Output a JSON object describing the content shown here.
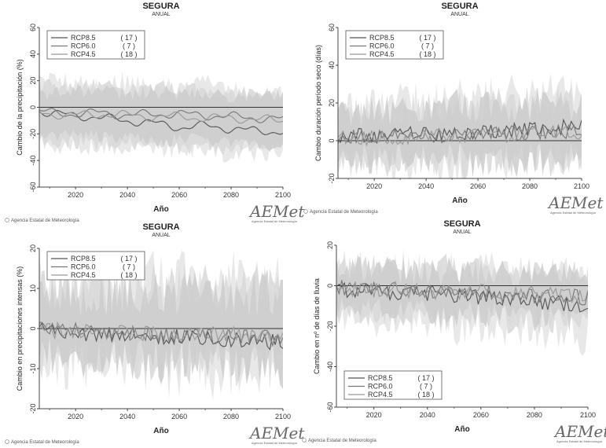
{
  "logo_name": "AEMet",
  "logo_subtitle": "Agencia Estatal de Meteorología",
  "chart_data": [
    {
      "type": "line",
      "title": "SEGURA",
      "subtitle": "ANUAL",
      "xlabel": "Año",
      "ylabel": "Cambio de la precipitación (%)",
      "xlim": [
        2006,
        2100
      ],
      "ylim": [
        -60,
        60
      ],
      "xticks": [
        "2020",
        "2040",
        "2060",
        "2080",
        "2100"
      ],
      "yticks": [
        "-60",
        "-40",
        "-20",
        "0",
        "20",
        "40",
        "60"
      ],
      "legend_position": "top-left",
      "credit": "© Agencia Estatal de Meteorología",
      "smooth": true,
      "series": [
        {
          "name": "RCP8.5",
          "count": "( 17 )",
          "color": "#555555",
          "x": [
            2006,
            2010,
            2020,
            2030,
            2040,
            2050,
            2060,
            2070,
            2080,
            2090,
            2100
          ],
          "y": [
            -2,
            -5,
            -6,
            -8,
            -10,
            -12,
            -15,
            -14,
            -16,
            -18,
            -18
          ],
          "band": [
            [
              -25,
              20
            ],
            [
              -30,
              20
            ],
            [
              -30,
              18
            ],
            [
              -30,
              18
            ],
            [
              -30,
              20
            ],
            [
              -30,
              16
            ],
            [
              -33,
              16
            ],
            [
              -33,
              18
            ],
            [
              -35,
              14
            ],
            [
              -35,
              10
            ],
            [
              -35,
              10
            ]
          ]
        },
        {
          "name": "RCP6.0",
          "count": "( 7 )",
          "color": "#777777",
          "x": [
            2006,
            2010,
            2020,
            2030,
            2040,
            2050,
            2060,
            2070,
            2080,
            2090,
            2100
          ],
          "y": [
            -3,
            -4,
            -5,
            -4,
            -6,
            -5,
            -5,
            -6,
            -7,
            -8,
            -9
          ],
          "band": [
            [
              -20,
              10
            ],
            [
              -22,
              10
            ],
            [
              -20,
              12
            ],
            [
              -22,
              12
            ],
            [
              -22,
              10
            ],
            [
              -24,
              12
            ],
            [
              -25,
              10
            ],
            [
              -24,
              10
            ],
            [
              -28,
              8
            ],
            [
              -28,
              8
            ],
            [
              -30,
              8
            ]
          ]
        },
        {
          "name": "RCP4.5",
          "count": "( 18 )",
          "color": "#999999",
          "x": [
            2006,
            2010,
            2020,
            2030,
            2040,
            2050,
            2060,
            2070,
            2080,
            2090,
            2100
          ],
          "y": [
            -4,
            -5,
            -6,
            -5,
            -6,
            -7,
            -7,
            -8,
            -8,
            -9,
            -10
          ],
          "band": [
            [
              -26,
              15
            ],
            [
              -28,
              15
            ],
            [
              -26,
              14
            ],
            [
              -28,
              16
            ],
            [
              -28,
              14
            ],
            [
              -28,
              14
            ],
            [
              -30,
              14
            ],
            [
              -30,
              12
            ],
            [
              -30,
              12
            ],
            [
              -30,
              10
            ],
            [
              -30,
              10
            ]
          ]
        }
      ]
    },
    {
      "type": "line",
      "title": "SEGURA",
      "subtitle": "ANUAL",
      "xlabel": "Año",
      "ylabel": "Cambio duración período seco (días)",
      "xlim": [
        2006,
        2100
      ],
      "ylim": [
        -20,
        60
      ],
      "xticks": [
        "2020",
        "2040",
        "2060",
        "2080",
        "2100"
      ],
      "yticks": [
        "-20",
        "0",
        "20",
        "40",
        "60"
      ],
      "legend_position": "top-left",
      "credit": "© Agencia Estatal de Meteorología",
      "smooth": false,
      "series": [
        {
          "name": "RCP8.5",
          "count": "( 17 )",
          "color": "#555555",
          "x": [
            2006,
            2010,
            2020,
            2030,
            2040,
            2050,
            2060,
            2070,
            2080,
            2090,
            2100
          ],
          "y": [
            2,
            3,
            2,
            4,
            3,
            4,
            5,
            5,
            6,
            7,
            8
          ],
          "band": [
            [
              -12,
              14
            ],
            [
              -12,
              16
            ],
            [
              -12,
              18
            ],
            [
              -12,
              20
            ],
            [
              -12,
              20
            ],
            [
              -12,
              22
            ],
            [
              -10,
              22
            ],
            [
              -10,
              24
            ],
            [
              -10,
              26
            ],
            [
              -10,
              26
            ],
            [
              -10,
              22
            ]
          ]
        },
        {
          "name": "RCP6.0",
          "count": "( 7 )",
          "color": "#777777",
          "x": [
            2006,
            2010,
            2020,
            2030,
            2040,
            2050,
            2060,
            2070,
            2080,
            2090,
            2100
          ],
          "y": [
            1,
            2,
            2,
            2,
            3,
            3,
            3,
            4,
            4,
            5,
            5
          ],
          "band": [
            [
              -10,
              12
            ],
            [
              -10,
              14
            ],
            [
              -10,
              15
            ],
            [
              -10,
              16
            ],
            [
              -10,
              16
            ],
            [
              -10,
              18
            ],
            [
              -10,
              18
            ],
            [
              -10,
              18
            ],
            [
              -10,
              20
            ],
            [
              -10,
              20
            ],
            [
              -10,
              18
            ]
          ]
        },
        {
          "name": "RCP4.5",
          "count": "( 18 )",
          "color": "#999999",
          "x": [
            2006,
            2010,
            2020,
            2030,
            2040,
            2050,
            2060,
            2070,
            2080,
            2090,
            2100
          ],
          "y": [
            1,
            1,
            2,
            2,
            3,
            3,
            3,
            3,
            4,
            4,
            4
          ],
          "band": [
            [
              -11,
              13
            ],
            [
              -11,
              14
            ],
            [
              -11,
              15
            ],
            [
              -11,
              16
            ],
            [
              -11,
              17
            ],
            [
              -11,
              18
            ],
            [
              -11,
              18
            ],
            [
              -11,
              19
            ],
            [
              -11,
              20
            ],
            [
              -11,
              20
            ],
            [
              -11,
              18
            ]
          ]
        }
      ]
    },
    {
      "type": "line",
      "title": "SEGURA",
      "subtitle": "ANUAL",
      "xlabel": "Año",
      "ylabel": "Cambio en precipitaciones intensas (%)",
      "xlim": [
        2006,
        2100
      ],
      "ylim": [
        -20,
        20
      ],
      "xticks": [
        "2020",
        "2040",
        "2060",
        "2080",
        "2100"
      ],
      "yticks": [
        "-20",
        "-10",
        "0",
        "10",
        "20"
      ],
      "legend_position": "top-left",
      "credit": "© Agencia Estatal de Meteorología",
      "smooth": false,
      "series": [
        {
          "name": "RCP8.5",
          "count": "( 17 )",
          "color": "#555555",
          "x": [
            2006,
            2010,
            2020,
            2030,
            2040,
            2050,
            2060,
            2070,
            2080,
            2090,
            2100
          ],
          "y": [
            0,
            -0.5,
            -1,
            -1.5,
            -1.5,
            -2,
            -2,
            -2.5,
            -3,
            -3,
            -3.5
          ],
          "band": [
            [
              -9,
              11
            ],
            [
              -9,
              11
            ],
            [
              -9,
              12
            ],
            [
              -9,
              12
            ],
            [
              -9,
              12
            ],
            [
              -10,
              12
            ],
            [
              -10,
              13
            ],
            [
              -10,
              12
            ],
            [
              -11,
              13
            ],
            [
              -11,
              12
            ],
            [
              -11,
              12
            ]
          ]
        },
        {
          "name": "RCP6.0",
          "count": "( 7 )",
          "color": "#777777",
          "x": [
            2006,
            2010,
            2020,
            2030,
            2040,
            2050,
            2060,
            2070,
            2080,
            2090,
            2100
          ],
          "y": [
            0,
            -0.5,
            -0.5,
            -1,
            -1,
            -1.5,
            -1.5,
            -2,
            -2,
            -2,
            -2.5
          ],
          "band": [
            [
              -7,
              8
            ],
            [
              -7,
              8
            ],
            [
              -7,
              8
            ],
            [
              -8,
              9
            ],
            [
              -8,
              9
            ],
            [
              -8,
              9
            ],
            [
              -8,
              9
            ],
            [
              -8,
              9
            ],
            [
              -9,
              9
            ],
            [
              -9,
              9
            ],
            [
              -9,
              9
            ]
          ]
        },
        {
          "name": "RCP4.5",
          "count": "( 18 )",
          "color": "#999999",
          "x": [
            2006,
            2010,
            2020,
            2030,
            2040,
            2050,
            2060,
            2070,
            2080,
            2090,
            2100
          ],
          "y": [
            0,
            -0.5,
            -0.5,
            -1,
            -1,
            -1,
            -1.5,
            -1.5,
            -1.5,
            -2,
            -2
          ],
          "band": [
            [
              -8,
              9
            ],
            [
              -8,
              9
            ],
            [
              -8,
              10
            ],
            [
              -8,
              10
            ],
            [
              -8,
              10
            ],
            [
              -9,
              10
            ],
            [
              -9,
              10
            ],
            [
              -9,
              10
            ],
            [
              -9,
              10
            ],
            [
              -9,
              10
            ],
            [
              -9,
              10
            ]
          ]
        }
      ]
    },
    {
      "type": "line",
      "title": "SEGURA",
      "subtitle": "ANUAL",
      "xlabel": "Año",
      "ylabel": "Cambio en nº de días de lluvia",
      "xlim": [
        2006,
        2100
      ],
      "ylim": [
        -60,
        20
      ],
      "xticks": [
        "2020",
        "2040",
        "2060",
        "2080",
        "2100"
      ],
      "yticks": [
        "-60",
        "-40",
        "-20",
        "0",
        "20"
      ],
      "legend_position": "bottom-left",
      "credit": "© Agencia Estatal de Meteorología",
      "smooth": false,
      "series": [
        {
          "name": "RCP8.5",
          "count": "( 17 )",
          "color": "#555555",
          "x": [
            2006,
            2010,
            2020,
            2030,
            2040,
            2050,
            2060,
            2070,
            2080,
            2090,
            2100
          ],
          "y": [
            -1,
            -2,
            -3,
            -4,
            -4,
            -5,
            -6,
            -7,
            -8,
            -9,
            -10
          ],
          "band": [
            [
              -15,
              10
            ],
            [
              -15,
              10
            ],
            [
              -17,
              9
            ],
            [
              -18,
              9
            ],
            [
              -18,
              9
            ],
            [
              -20,
              8
            ],
            [
              -21,
              8
            ],
            [
              -22,
              7
            ],
            [
              -23,
              6
            ],
            [
              -24,
              5
            ],
            [
              -25,
              4
            ]
          ]
        },
        {
          "name": "RCP6.0",
          "count": "( 7 )",
          "color": "#777777",
          "x": [
            2006,
            2010,
            2020,
            2030,
            2040,
            2050,
            2060,
            2070,
            2080,
            2090,
            2100
          ],
          "y": [
            -1,
            -1,
            -2,
            -2,
            -3,
            -3,
            -4,
            -4,
            -5,
            -5,
            -6
          ],
          "band": [
            [
              -12,
              8
            ],
            [
              -12,
              8
            ],
            [
              -13,
              8
            ],
            [
              -13,
              7
            ],
            [
              -14,
              7
            ],
            [
              -14,
              7
            ],
            [
              -15,
              6
            ],
            [
              -15,
              6
            ],
            [
              -16,
              6
            ],
            [
              -16,
              5
            ],
            [
              -17,
              5
            ]
          ]
        },
        {
          "name": "RCP4.5",
          "count": "( 18 )",
          "color": "#999999",
          "x": [
            2006,
            2010,
            2020,
            2030,
            2040,
            2050,
            2060,
            2070,
            2080,
            2090,
            2100
          ],
          "y": [
            -1,
            -1,
            -2,
            -2,
            -3,
            -3,
            -3,
            -4,
            -4,
            -4,
            -5
          ],
          "band": [
            [
              -13,
              9
            ],
            [
              -13,
              9
            ],
            [
              -14,
              8
            ],
            [
              -14,
              8
            ],
            [
              -15,
              8
            ],
            [
              -15,
              8
            ],
            [
              -16,
              7
            ],
            [
              -16,
              7
            ],
            [
              -17,
              7
            ],
            [
              -17,
              6
            ],
            [
              -18,
              6
            ]
          ]
        }
      ]
    }
  ]
}
